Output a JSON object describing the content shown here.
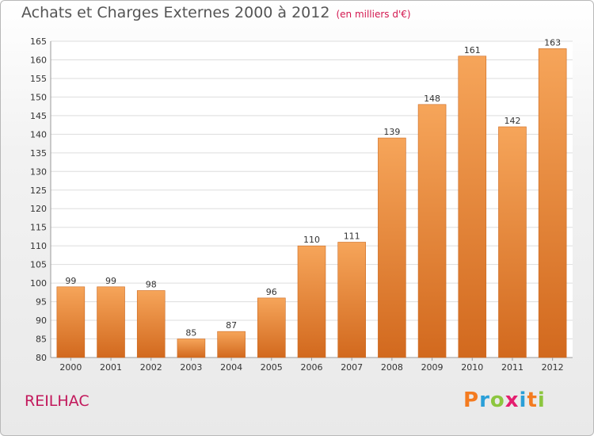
{
  "title": "Achats et Charges Externes 2000 à 2012",
  "unit": "(en milliers d'€)",
  "commune": "REILHAC",
  "logo": {
    "text": "Proxiti",
    "colors": [
      "#f47b20",
      "#2a9fd8",
      "#8cc63f",
      "#e41e6f",
      "#2a9fd8",
      "#f47b20",
      "#8cc63f"
    ]
  },
  "colors": {
    "bar_top": "#f6a55a",
    "bar_bottom": "#d2691e",
    "title": "#555555",
    "unit": "#d3174f",
    "commune": "#c2185b"
  },
  "chart_data": {
    "type": "bar",
    "categories": [
      "2000",
      "2001",
      "2002",
      "2003",
      "2004",
      "2005",
      "2006",
      "2007",
      "2008",
      "2009",
      "2010",
      "2011",
      "2012"
    ],
    "values": [
      99,
      99,
      98,
      85,
      87,
      96,
      110,
      111,
      139,
      148,
      161,
      142,
      163
    ],
    "title": "Achats et Charges Externes 2000 à 2012",
    "xlabel": "",
    "ylabel": "",
    "ylim": [
      80,
      165
    ],
    "yticks": [
      80,
      85,
      90,
      95,
      100,
      105,
      110,
      115,
      120,
      125,
      130,
      135,
      140,
      145,
      150,
      155,
      160,
      165
    ],
    "grid": true,
    "legend": "none"
  }
}
